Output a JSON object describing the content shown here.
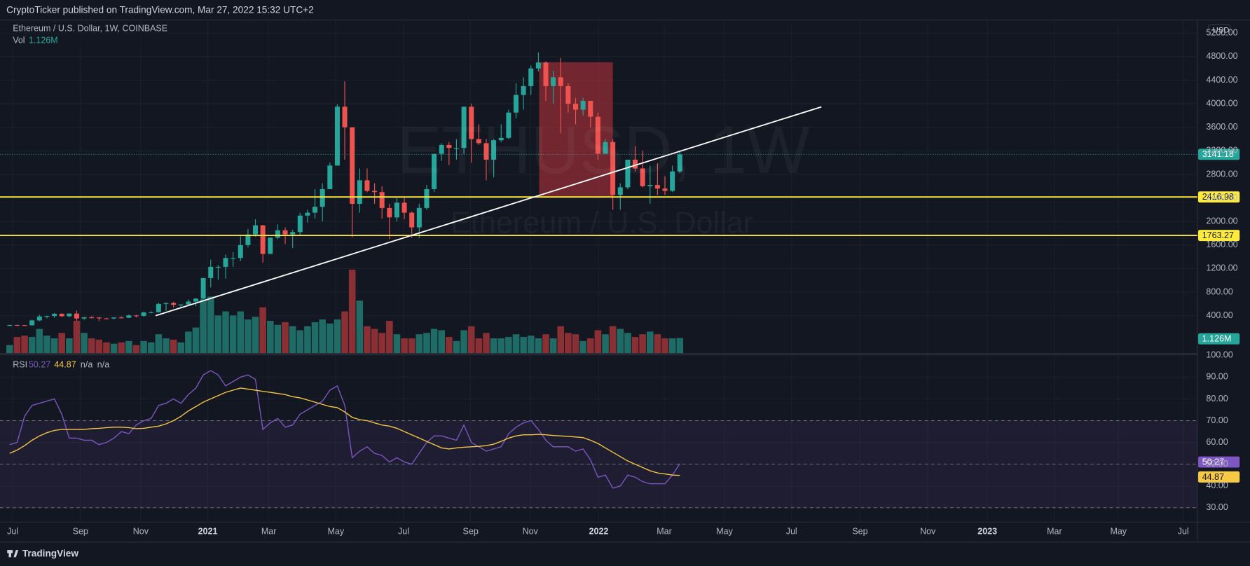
{
  "header": {
    "publisher": "CryptoTicker published on TradingView.com, Mar 27, 2022 15:32 UTC+2"
  },
  "footer": {
    "logo": "TradingView"
  },
  "chart_data": [
    {
      "type": "candlestick",
      "title": "Ethereum / U.S. Dollar, 1W, COINBASE",
      "watermark": "ETHUSD, 1W",
      "watermark_subtitle": "Ethereum / U.S. Dollar",
      "currency": "USD",
      "up_color": "#26a69a",
      "down_color": "#ef5350",
      "volume_up_color": "#1f6b66",
      "volume_down_color": "#8a3035",
      "grid": true,
      "xlim": [
        -1.3,
        159.5
      ],
      "xticks": [
        {
          "value": 0.4,
          "label": "Jul"
        },
        {
          "value": 9.5,
          "label": "Sep"
        },
        {
          "value": 17.6,
          "label": "Nov"
        },
        {
          "value": 26.6,
          "label": "2021"
        },
        {
          "value": 34.8,
          "label": "Mar"
        },
        {
          "value": 43.8,
          "label": "May"
        },
        {
          "value": 52.9,
          "label": "Jul"
        },
        {
          "value": 61.9,
          "label": "Sep"
        },
        {
          "value": 69.9,
          "label": "Nov"
        },
        {
          "value": 79.1,
          "label": "2022"
        },
        {
          "value": 87.9,
          "label": "Mar"
        },
        {
          "value": 96.0,
          "label": "May"
        },
        {
          "value": 105.0,
          "label": "Jul"
        },
        {
          "value": 114.2,
          "label": "Sep"
        },
        {
          "value": 123.3,
          "label": "Nov"
        },
        {
          "value": 131.3,
          "label": "2023"
        },
        {
          "value": 140.3,
          "label": "Mar"
        },
        {
          "value": 148.9,
          "label": "May"
        },
        {
          "value": 157.6,
          "label": "Jul"
        }
      ],
      "ylim": [
        -236,
        5423
      ],
      "yticks": [
        {
          "value": 400,
          "label": "400.00"
        },
        {
          "value": 800,
          "label": "800.00"
        },
        {
          "value": 1200,
          "label": "1200.00"
        },
        {
          "value": 1600,
          "label": "1600.00"
        },
        {
          "value": 2000,
          "label": "2000.00"
        },
        {
          "value": 2400,
          "label": "2400.00"
        },
        {
          "value": 2800,
          "label": "2800.00"
        },
        {
          "value": 3200,
          "label": "3200.00"
        },
        {
          "value": 3600,
          "label": "3600.00"
        },
        {
          "value": 4000,
          "label": "4000.00"
        },
        {
          "value": 4400,
          "label": "4400.00"
        },
        {
          "value": 4800,
          "label": "4800.00"
        },
        {
          "value": 5200,
          "label": "5200.00"
        }
      ],
      "open": [
        228,
        242,
        239,
        236,
        320,
        386,
        395,
        433,
        390,
        436,
        352,
        372,
        370,
        355,
        353,
        370,
        365,
        405,
        397,
        455,
        460,
        600,
        615,
        585,
        590,
        640,
        690,
        1040,
        1230,
        1230,
        1380,
        1380,
        1600,
        1780,
        1935,
        1450,
        1725,
        1850,
        1780,
        1820,
        2100,
        2150,
        2250,
        2550,
        2950,
        3950,
        3600,
        2300,
        2700,
        2520,
        2500,
        2230,
        2070,
        2320,
        2150,
        1900,
        2230,
        2550,
        3150,
        3300,
        3250,
        3250,
        3950,
        3400,
        3330,
        3050,
        3380,
        3420,
        3850,
        4150,
        4300,
        4600,
        4700,
        4300,
        4450,
        4300,
        4000,
        3900,
        4050,
        3780,
        3150,
        3350,
        2450,
        2580,
        3050,
        2900,
        2600,
        2620,
        2560,
        2520,
        2850
      ],
      "high": [
        246,
        250,
        245,
        330,
        415,
        400,
        445,
        440,
        440,
        488,
        380,
        393,
        375,
        365,
        375,
        390,
        420,
        415,
        470,
        475,
        620,
        620,
        635,
        595,
        675,
        700,
        1040,
        1350,
        1260,
        1440,
        1480,
        1760,
        1870,
        2040,
        1940,
        1730,
        1950,
        1900,
        1860,
        2150,
        2200,
        2550,
        2650,
        3000,
        3990,
        4380,
        3600,
        2900,
        2900,
        2650,
        2600,
        2300,
        2400,
        2400,
        2170,
        2300,
        2620,
        3150,
        3330,
        3350,
        3400,
        3950,
        4000,
        3650,
        3400,
        3400,
        3650,
        3900,
        4350,
        4450,
        4650,
        4870,
        4720,
        4560,
        4780,
        4350,
        4100,
        4100,
        4050,
        3850,
        3400,
        3400,
        2650,
        3050,
        3280,
        3200,
        2950,
        2990,
        2770,
        2950,
        3180
      ],
      "low": [
        222,
        235,
        229,
        234,
        305,
        355,
        365,
        380,
        375,
        310,
        330,
        355,
        310,
        335,
        335,
        358,
        360,
        370,
        380,
        440,
        450,
        480,
        540,
        530,
        580,
        560,
        680,
        880,
        1010,
        1030,
        1230,
        1330,
        1560,
        1740,
        1300,
        1450,
        1700,
        1620,
        1550,
        1770,
        1980,
        2050,
        2000,
        2550,
        2950,
        3050,
        1730,
        2150,
        2500,
        2300,
        2050,
        1700,
        2000,
        2040,
        1720,
        1720,
        2200,
        2500,
        3030,
        2960,
        3050,
        3150,
        3000,
        3300,
        2700,
        2750,
        3350,
        3400,
        3750,
        3900,
        4150,
        4550,
        4050,
        4000,
        3500,
        3850,
        3650,
        3800,
        3600,
        3050,
        3150,
        2200,
        2200,
        2550,
        2850,
        2580,
        2300,
        2450,
        2450,
        2500,
        2820
      ],
      "close": [
        242,
        239,
        236,
        320,
        386,
        395,
        433,
        390,
        436,
        352,
        372,
        370,
        355,
        353,
        370,
        365,
        405,
        397,
        455,
        460,
        600,
        615,
        585,
        590,
        640,
        690,
        1040,
        1230,
        1230,
        1380,
        1380,
        1600,
        1780,
        1935,
        1450,
        1725,
        1850,
        1780,
        1820,
        2100,
        2150,
        2250,
        2550,
        2950,
        3950,
        3600,
        2300,
        2700,
        2520,
        2500,
        2230,
        2070,
        2320,
        2150,
        1900,
        2230,
        2550,
        3150,
        3300,
        3250,
        3250,
        3950,
        3400,
        3330,
        3050,
        3380,
        3420,
        3850,
        4150,
        4300,
        4600,
        4700,
        4300,
        4450,
        4300,
        4000,
        3900,
        4050,
        3780,
        3150,
        3350,
        2450,
        2580,
        3050,
        2900,
        2600,
        2620,
        2560,
        2520,
        2850,
        3141.18
      ],
      "volume": {
        "label": "Vol",
        "values": [
          0.6,
          1.2,
          1.3,
          1.2,
          1.8,
          1.3,
          1.1,
          1.5,
          1.1,
          2.4,
          1.5,
          1.1,
          1.0,
          0.8,
          0.7,
          0.8,
          0.9,
          0.6,
          0.9,
          0.8,
          1.4,
          1.1,
          1.0,
          0.8,
          1.6,
          1.9,
          4.0,
          4.2,
          2.8,
          3.1,
          2.8,
          3.1,
          2.5,
          2.7,
          3.4,
          2.4,
          2.1,
          2.3,
          2.0,
          1.7,
          2.0,
          2.3,
          2.5,
          2.2,
          2.5,
          3.1,
          6.2,
          3.9,
          2.0,
          1.8,
          1.5,
          2.4,
          1.4,
          1.1,
          1.1,
          1.4,
          1.5,
          1.8,
          1.7,
          1.2,
          0.9,
          1.7,
          2.0,
          1.1,
          1.5,
          1.1,
          1.1,
          1.2,
          1.4,
          1.2,
          1.3,
          1.1,
          1.4,
          1.1,
          2.0,
          1.5,
          1.4,
          0.9,
          1.1,
          1.7,
          1.4,
          2.0,
          1.8,
          1.5,
          1.2,
          1.4,
          1.6,
          1.4,
          1.1,
          1.1,
          1.126
        ],
        "value_labels": [
          null,
          null,
          null,
          null,
          null,
          null,
          null,
          null,
          null,
          null,
          null,
          null,
          null,
          null,
          null,
          null,
          null,
          null,
          null,
          null,
          null,
          null,
          null,
          null,
          null,
          null,
          null,
          null,
          null,
          null,
          null,
          null,
          null,
          null,
          null,
          null,
          null,
          null,
          null,
          null,
          null,
          null,
          null,
          null,
          null,
          null,
          null,
          null,
          null,
          null,
          null,
          null,
          null,
          null,
          null,
          null,
          null,
          null,
          null,
          null,
          null,
          null,
          null,
          null,
          null,
          null,
          null,
          null,
          null,
          null,
          null,
          null,
          null,
          null,
          null,
          null,
          null,
          null,
          null,
          null,
          null,
          null,
          null,
          null,
          null,
          null,
          null,
          null,
          null,
          null,
          "1.126M"
        ]
      },
      "hlines": [
        {
          "value": 2416.98,
          "color": "#ffeb3b"
        },
        {
          "value": 1763.27,
          "color": "#ffeb3b"
        }
      ],
      "trendline": {
        "x": [
          19.6,
          109
        ],
        "y": [
          400,
          3947
        ],
        "color": "#ffffff"
      },
      "box": {
        "x": [
          71.1,
          81.0
        ],
        "y": [
          4705,
          2417
        ],
        "color": "#b2323a"
      }
    },
    {
      "type": "line",
      "title": "RSI",
      "na_labels": [
        "n/a",
        "n/a"
      ],
      "ylim": [
        23.4,
        100.3
      ],
      "yticks": [
        {
          "value": 30,
          "label": "30.00"
        },
        {
          "value": 40,
          "label": "40.00"
        },
        {
          "value": 50,
          "label": "50.00"
        },
        {
          "value": 60,
          "label": "60.00"
        },
        {
          "value": 70,
          "label": "70.00"
        },
        {
          "value": 80,
          "label": "80.00"
        },
        {
          "value": 90,
          "label": "90.00"
        },
        {
          "value": 100,
          "label": "100.00"
        }
      ],
      "band": [
        30,
        70
      ],
      "dashed_levels": [
        30,
        50,
        70
      ],
      "series": [
        {
          "color": "#7e57c2",
          "values": [
            59,
            60,
            72,
            77,
            78,
            79,
            80,
            73,
            62,
            62,
            61,
            61,
            59,
            60,
            62,
            65,
            64,
            68,
            70,
            71,
            77,
            78,
            80,
            78,
            82,
            85,
            91,
            93,
            91,
            86,
            88,
            90,
            91,
            89,
            66,
            69,
            71,
            67,
            68,
            73,
            75,
            77,
            79,
            84,
            86,
            77,
            53,
            56,
            58,
            55,
            54,
            51,
            53,
            51,
            50,
            55,
            60,
            63,
            63,
            62,
            61,
            68,
            60,
            58,
            56,
            57,
            58,
            64,
            67,
            69,
            70,
            66,
            61,
            58,
            58,
            58,
            56,
            57,
            52,
            44,
            45,
            39,
            40,
            45,
            44,
            42,
            41,
            41,
            41,
            45,
            50.27
          ]
        },
        {
          "color": "#f7c843",
          "values": [
            55,
            56.5,
            58.5,
            61,
            63,
            64.5,
            65.5,
            66,
            66,
            66,
            66,
            66.3,
            66.5,
            66.8,
            67,
            67,
            66.8,
            66.3,
            66.5,
            67,
            67.5,
            68.5,
            70,
            72,
            74.5,
            76.5,
            78.5,
            80,
            81.5,
            83,
            84,
            85,
            84.5,
            84,
            83.5,
            83,
            82.5,
            82,
            81,
            80.5,
            79.5,
            78.5,
            77.5,
            76.5,
            76,
            74,
            71.5,
            70.5,
            70,
            69,
            68,
            67.5,
            66.5,
            65,
            63.5,
            62,
            60.5,
            59,
            57.5,
            57,
            57.5,
            57.8,
            58,
            58.2,
            58.5,
            59.2,
            60.5,
            62,
            63,
            63.5,
            63.5,
            63.7,
            63.5,
            63.2,
            63,
            62.8,
            62.5,
            62.2,
            61,
            59.5,
            57.5,
            55.5,
            53.5,
            51.5,
            50,
            48.5,
            47,
            46,
            45.5,
            45,
            44.87
          ]
        }
      ]
    }
  ]
}
